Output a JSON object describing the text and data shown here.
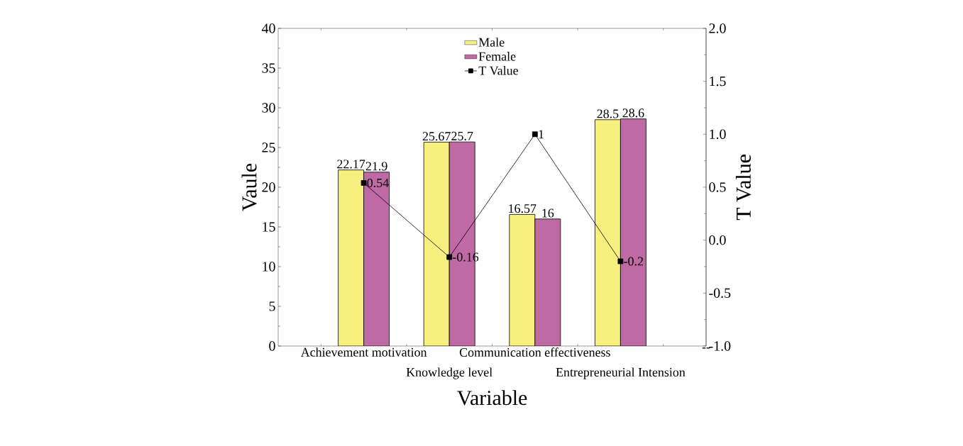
{
  "chart_data": {
    "type": "bar",
    "xlabel": "Variable",
    "ylabel": "Vaule",
    "y2label": "T Value",
    "categories": [
      null,
      "Achievement motivation",
      "Knowledge level",
      "Communication effectiveness",
      "Entrepreneurial Intension",
      "--"
    ],
    "series": [
      {
        "name": "Male",
        "color": "#f7f07f",
        "values": [
          null,
          22.17,
          25.67,
          16.57,
          28.5,
          null
        ]
      },
      {
        "name": "Female",
        "color": "#c06aa5",
        "values": [
          null,
          21.9,
          25.7,
          16,
          28.6,
          null
        ]
      },
      {
        "name": "T Value",
        "type": "line",
        "axis": "y2",
        "color": "#000000",
        "marker": "square",
        "values": [
          null,
          0.54,
          -0.16,
          1,
          -0.2,
          null
        ]
      }
    ],
    "ylim": [
      0,
      40
    ],
    "yticks": [
      0,
      5,
      10,
      15,
      20,
      25,
      30,
      35,
      40
    ],
    "y2lim": [
      -1.0,
      2.0
    ],
    "y2ticks": [
      {
        "value": -1.0,
        "label": "-1.0"
      },
      {
        "value": -0.5,
        "label": "-0.5"
      },
      {
        "value": 0.0,
        "label": "0.0"
      },
      {
        "value": 0.5,
        "label": "0.5"
      },
      {
        "value": 1.0,
        "label": "1.0"
      },
      {
        "value": 1.5,
        "label": "1.5"
      },
      {
        "value": 2.0,
        "label": "2.0"
      }
    ],
    "data_labels": true,
    "legend": "top",
    "grid": false
  }
}
